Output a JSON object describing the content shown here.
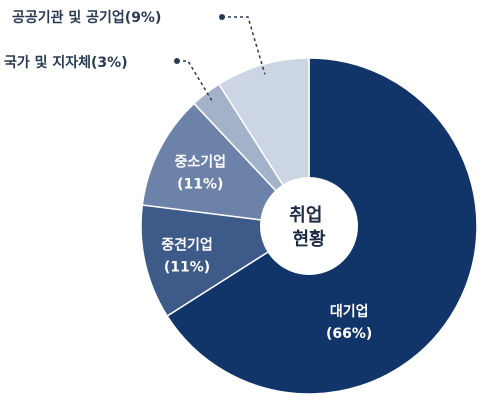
{
  "chart_data": {
    "type": "pie",
    "center_label": [
      "취업",
      "현황"
    ],
    "slices": [
      {
        "label": "대기업",
        "value": 66,
        "value_label": "(66%)",
        "color": "#123569",
        "text_color": "#ffffff",
        "label_placement": "inside"
      },
      {
        "label": "중견기업",
        "value": 11,
        "value_label": "(11%)",
        "color": "#3d5a88",
        "text_color": "#ffffff",
        "label_placement": "inside"
      },
      {
        "label": "중소기업",
        "value": 11,
        "value_label": "(11%)",
        "color": "#6c82a8",
        "text_color": "#ffffff",
        "label_placement": "inside"
      },
      {
        "label": "국가 및 지자체",
        "value": 3,
        "value_label": "(3%)",
        "color": "#a4b2c9",
        "text_color": "#2a3a52",
        "label_placement": "outside"
      },
      {
        "label": "공공기관 및 공기업",
        "value": 9,
        "value_label": "(9%)",
        "color": "#ccd5e3",
        "text_color": "#2a3a52",
        "label_placement": "outside"
      }
    ]
  }
}
